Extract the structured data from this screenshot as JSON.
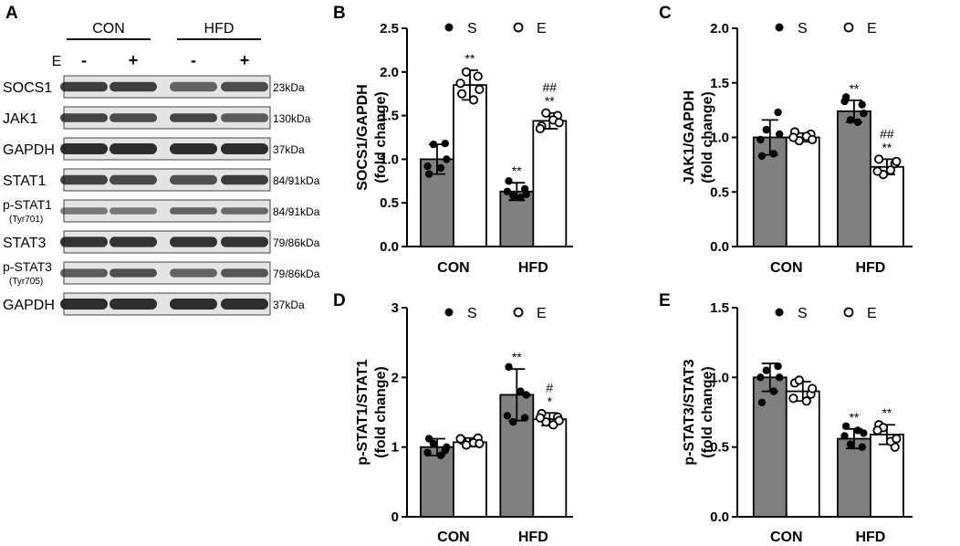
{
  "blot": {
    "panel_letter": "A",
    "groups": [
      "CON",
      "HFD"
    ],
    "treatment_label": "E",
    "treatment_signs": [
      "-",
      "+",
      "-",
      "+"
    ],
    "rows": [
      {
        "name": "SOCS1",
        "sub": "",
        "mw": "23kDa",
        "lanes": [
          0.82,
          0.8,
          0.55,
          0.72
        ],
        "weight": 0.8
      },
      {
        "name": "JAK1",
        "sub": "",
        "mw": "130kDa",
        "lanes": [
          0.78,
          0.72,
          0.78,
          0.62
        ],
        "weight": 0.7
      },
      {
        "name": "GAPDH",
        "sub": "",
        "mw": "37kDa",
        "lanes": [
          0.95,
          0.95,
          0.95,
          0.95
        ],
        "weight": 1.0
      },
      {
        "name": "STAT1",
        "sub": "",
        "mw": "84/91kDa",
        "lanes": [
          0.78,
          0.75,
          0.68,
          0.85
        ],
        "weight": 0.8
      },
      {
        "name": "p-STAT1",
        "sub": "(Tyr701)",
        "mw": "84/91kDa",
        "lanes": [
          0.4,
          0.42,
          0.55,
          0.5
        ],
        "weight": 0.45
      },
      {
        "name": "STAT3",
        "sub": "",
        "mw": "79/86kDa",
        "lanes": [
          0.9,
          0.9,
          0.9,
          0.9
        ],
        "weight": 0.9
      },
      {
        "name": "p-STAT3",
        "sub": "(Tyr705)",
        "mw": "79/86kDa",
        "lanes": [
          0.6,
          0.7,
          0.55,
          0.65
        ],
        "weight": 0.65
      },
      {
        "name": "GAPDH",
        "sub": "",
        "mw": "37kDa",
        "lanes": [
          0.95,
          0.95,
          0.95,
          0.95
        ],
        "weight": 1.0
      }
    ]
  },
  "colors": {
    "S": "#808080",
    "E": "#ffffff",
    "stroke": "#000000",
    "band": "#1a1a1a"
  },
  "chart_data": [
    {
      "panel": "B",
      "type": "bar",
      "ylabel": [
        "SOCS1/GAPDH",
        "(fold change)"
      ],
      "ylim": [
        0,
        2.5
      ],
      "yticks": [
        0.0,
        0.5,
        1.0,
        1.5,
        2.0,
        2.5
      ],
      "tick_decimals": 1,
      "categories": [
        "CON",
        "HFD"
      ],
      "legend": [
        {
          "name": "S",
          "marker": "filled"
        },
        {
          "name": "E",
          "marker": "open"
        }
      ],
      "series": [
        {
          "name": "S",
          "values": [
            1.0,
            0.63
          ],
          "err": [
            0.17,
            0.1
          ],
          "points": [
            [
              0.83,
              1.18,
              1.17,
              0.9,
              0.92,
              1.0
            ],
            [
              0.75,
              0.66,
              0.58,
              0.56,
              0.63,
              0.6
            ]
          ],
          "annot": [
            "",
            "**"
          ]
        },
        {
          "name": "E",
          "values": [
            1.85,
            1.44
          ],
          "err": [
            0.17,
            0.09
          ],
          "points": [
            [
              1.75,
              1.95,
              2.0,
              1.68,
              1.87,
              1.8
            ],
            [
              1.38,
              1.5,
              1.53,
              1.45,
              1.35,
              1.42
            ]
          ],
          "annot": [
            "**",
            "##\n**"
          ]
        }
      ]
    },
    {
      "panel": "C",
      "type": "bar",
      "ylabel": [
        "JAK1/GAPDH",
        "(fold change)"
      ],
      "ylim": [
        0,
        2.0
      ],
      "yticks": [
        0.0,
        0.5,
        1.0,
        1.5,
        2.0
      ],
      "tick_decimals": 1,
      "categories": [
        "CON",
        "HFD"
      ],
      "legend": [
        {
          "name": "S",
          "marker": "filled"
        },
        {
          "name": "E",
          "marker": "open"
        }
      ],
      "series": [
        {
          "name": "S",
          "values": [
            1.0,
            1.24
          ],
          "err": [
            0.16,
            0.1
          ],
          "points": [
            [
              0.83,
              1.23,
              1.07,
              0.85,
              0.98,
              1.03
            ],
            [
              1.37,
              1.3,
              1.16,
              1.14,
              1.33,
              1.22
            ]
          ],
          "annot": [
            "",
            "**"
          ]
        },
        {
          "name": "E",
          "values": [
            1.0,
            0.73
          ],
          "err": [
            0.04,
            0.07
          ],
          "points": [
            [
              1.05,
              1.03,
              0.97,
              1.01,
              1.0,
              0.98
            ],
            [
              0.8,
              0.76,
              0.66,
              0.7,
              0.69,
              0.78
            ]
          ],
          "annot": [
            "",
            "##\n**"
          ]
        }
      ]
    },
    {
      "panel": "D",
      "type": "bar",
      "ylabel": [
        "p-STAT1/STAT1",
        "(fold change)"
      ],
      "ylim": [
        0,
        3
      ],
      "yticks": [
        0,
        1,
        2,
        3
      ],
      "tick_decimals": 0,
      "categories": [
        "CON",
        "HFD"
      ],
      "legend": [
        {
          "name": "S",
          "marker": "filled"
        },
        {
          "name": "E",
          "marker": "open"
        }
      ],
      "series": [
        {
          "name": "S",
          "values": [
            1.0,
            1.75
          ],
          "err": [
            0.12,
            0.37
          ],
          "points": [
            [
              1.12,
              0.95,
              1.05,
              0.88,
              0.92,
              1.0
            ],
            [
              2.15,
              1.42,
              1.36,
              1.8,
              1.45,
              1.75
            ]
          ],
          "annot": [
            "",
            "**"
          ]
        },
        {
          "name": "E",
          "values": [
            1.07,
            1.4
          ],
          "err": [
            0.06,
            0.09
          ],
          "points": [
            [
              1.1,
              1.13,
              1.03,
              1.06,
              1.12,
              1.05
            ],
            [
              1.48,
              1.43,
              1.36,
              1.32,
              1.42,
              1.38
            ]
          ],
          "annot": [
            "",
            "#\n*"
          ]
        }
      ]
    },
    {
      "panel": "E",
      "type": "bar",
      "ylabel": [
        "p-STAT3/STAT3",
        "(fold change)"
      ],
      "ylim": [
        0,
        1.5
      ],
      "yticks": [
        0.0,
        0.5,
        1.0,
        1.5
      ],
      "tick_decimals": 1,
      "categories": [
        "CON",
        "HFD"
      ],
      "legend": [
        {
          "name": "S",
          "marker": "filled"
        },
        {
          "name": "E",
          "marker": "open"
        }
      ],
      "series": [
        {
          "name": "S",
          "values": [
            1.0,
            0.56
          ],
          "err": [
            0.1,
            0.07
          ],
          "points": [
            [
              0.82,
              1.08,
              1.05,
              0.9,
              1.0,
              1.0
            ],
            [
              0.65,
              0.5,
              0.52,
              0.62,
              0.58,
              0.6
            ]
          ],
          "annot": [
            "",
            "**"
          ]
        },
        {
          "name": "E",
          "values": [
            0.9,
            0.59
          ],
          "err": [
            0.07,
            0.07
          ],
          "points": [
            [
              0.96,
              0.88,
              0.98,
              0.83,
              0.85,
              0.92
            ],
            [
              0.66,
              0.5,
              0.64,
              0.54,
              0.62,
              0.56
            ]
          ],
          "annot": [
            "",
            "**"
          ]
        }
      ]
    }
  ]
}
